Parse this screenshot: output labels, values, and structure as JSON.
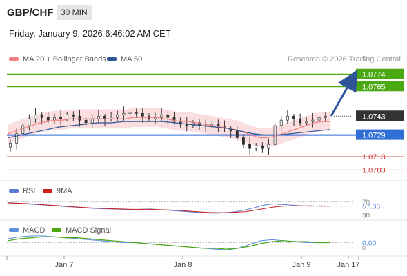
{
  "header": {
    "symbol": "GBP/CHF",
    "timeframe": "30 MIN",
    "datetime": "Friday, January 9, 2026 6:46:02 AM CET"
  },
  "legend": {
    "ma20_label": "MA 20 + Bollinger Bands",
    "ma50_label": "MA 50",
    "credit": "Research © 2026 Trading Central"
  },
  "colors": {
    "ma20": "#f07f7f",
    "ma50": "#2d5597",
    "bollinger_fill": "#fadadd",
    "resistance": "#4aa812",
    "pivot": "#2f6fd6",
    "support": "#e07a7a",
    "candle_up": "#333333",
    "candle_down": "#333333",
    "forecast_arrow": "#2d5597",
    "rsi": "#5b7fd6",
    "rsi_ma": "#cc1f1f",
    "macd": "#5b8fe0",
    "macd_signal": "#4aa812"
  },
  "chart_data": [
    {
      "type": "candlestick",
      "panel": "price",
      "x_labels": [
        "Jan 7",
        "Jan 8",
        "Jan 9",
        "Jan 17"
      ],
      "levels": [
        {
          "value": 1.0774,
          "label": "1.0774",
          "kind": "resistance"
        },
        {
          "value": 1.0765,
          "label": "1.0765",
          "kind": "resistance"
        },
        {
          "value": 1.0743,
          "label": "1.0743",
          "kind": "last"
        },
        {
          "value": 1.0729,
          "label": "1.0729",
          "kind": "pivot"
        },
        {
          "value": 1.0713,
          "label": "1.0713",
          "kind": "support"
        },
        {
          "value": 1.0703,
          "label": "1.0703",
          "kind": "support"
        }
      ],
      "ylim": [
        1.0695,
        1.078
      ],
      "close": [
        1.0723,
        1.073,
        1.0736,
        1.0741,
        1.0744,
        1.0742,
        1.074,
        1.0742,
        1.0741,
        1.0744,
        1.0743,
        1.074,
        1.0738,
        1.0741,
        1.0743,
        1.0741,
        1.0742,
        1.0744,
        1.0745,
        1.0746,
        1.0745,
        1.0743,
        1.0741,
        1.0742,
        1.0744,
        1.0742,
        1.0739,
        1.0737,
        1.0736,
        1.0738,
        1.0736,
        1.0736,
        1.0737,
        1.0735,
        1.0734,
        1.0732,
        1.0727,
        1.0722,
        1.0719,
        1.0721,
        1.0719,
        1.0722,
        1.0736,
        1.074,
        1.0743,
        1.0741,
        1.0738,
        1.0739,
        1.074,
        1.0742,
        1.0743
      ],
      "ma20": [
        1.073,
        1.0732,
        1.0734,
        1.0736,
        1.0738,
        1.0739,
        1.074,
        1.074,
        1.0741,
        1.0741,
        1.0741,
        1.0741,
        1.0741,
        1.0741,
        1.0741,
        1.0741,
        1.0742,
        1.0742,
        1.0742,
        1.0742,
        1.0741,
        1.074,
        1.0739,
        1.0739,
        1.0738,
        1.0737,
        1.0736,
        1.0735,
        1.0734,
        1.0733,
        1.0731,
        1.0729,
        1.0727,
        1.0727,
        1.0728,
        1.073,
        1.0732,
        1.0734,
        1.0736,
        1.0738,
        1.0739,
        1.0739
      ],
      "ma50": [
        1.0727,
        1.0729,
        1.0731,
        1.0733,
        1.0735,
        1.0736,
        1.0737,
        1.0738,
        1.0738,
        1.0739,
        1.0739,
        1.0739,
        1.0739,
        1.0738,
        1.0737,
        1.0736,
        1.0735,
        1.0734,
        1.0732,
        1.073,
        1.0729,
        1.0729,
        1.073,
        1.0731,
        1.0732,
        1.0733
      ],
      "forecast": {
        "from": 1.0743,
        "to": 1.0774
      }
    },
    {
      "type": "line",
      "panel": "rsi",
      "legend": [
        "RSI",
        "9MA"
      ],
      "tick_labels": [
        "70",
        "30"
      ],
      "ylim": [
        0,
        100
      ],
      "current_label": "57.36",
      "series": [
        {
          "name": "RSI",
          "values": [
            68,
            66,
            64,
            62,
            60,
            58,
            56,
            54,
            52,
            50,
            49,
            48,
            47,
            46,
            47,
            48,
            46,
            44,
            42,
            40,
            38,
            36,
            35,
            37,
            40,
            45,
            52,
            60,
            64,
            62,
            60,
            58,
            57,
            58,
            57.36
          ]
        },
        {
          "name": "9MA",
          "values": [
            67,
            66,
            65,
            63,
            61,
            59,
            57,
            55,
            53,
            51,
            50,
            49,
            48,
            47,
            47,
            47,
            46,
            45,
            44,
            42,
            40,
            38,
            37,
            37,
            38,
            40,
            44,
            49,
            54,
            57,
            58,
            58,
            58,
            57,
            57
          ]
        }
      ]
    },
    {
      "type": "line",
      "panel": "macd",
      "legend": [
        "MACD",
        "MACD Signal"
      ],
      "tick_labels": [
        "0"
      ],
      "current_label": "0.00",
      "series": [
        {
          "name": "MACD",
          "values": [
            0.0004,
            0.0006,
            0.0007,
            0.0007,
            0.0006,
            0.0005,
            0.0004,
            0.0003,
            0.0002,
            0.0001,
            0.0,
            0.0,
            -0.0001,
            -0.0002,
            -0.0003,
            -0.0004,
            -0.0005,
            -0.0006,
            -0.0007,
            -0.0008,
            -0.0006,
            -0.0002,
            0.0002,
            0.0003,
            0.0002,
            0.0001,
            0.0,
            0.0,
            0.0
          ]
        },
        {
          "name": "MACD Signal",
          "values": [
            0.0002,
            0.0004,
            0.0005,
            0.0006,
            0.0006,
            0.0005,
            0.0005,
            0.0004,
            0.0003,
            0.0002,
            0.0001,
            0.0,
            -0.0001,
            -0.0002,
            -0.0003,
            -0.0004,
            -0.0005,
            -0.0006,
            -0.0006,
            -0.0007,
            -0.0006,
            -0.0004,
            -0.0001,
            0.0001,
            0.0002,
            0.0001,
            0.0001,
            0.0,
            0.0
          ]
        }
      ]
    }
  ]
}
